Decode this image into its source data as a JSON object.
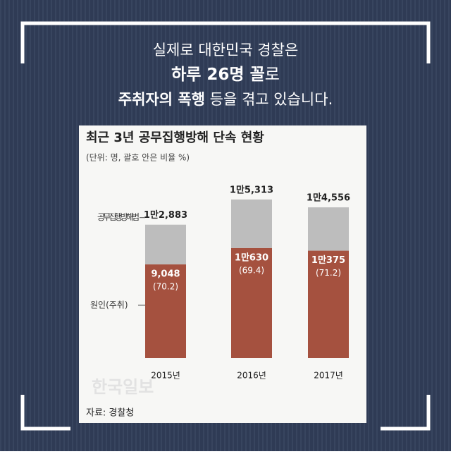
{
  "header": {
    "line1": "실제로 대한민국 경찰은",
    "line2_bold": "하루 26명 꼴",
    "line2_rest": "로",
    "line3_bold": "주취자의 폭행",
    "line3_rest": " 등을 겪고 있습니다."
  },
  "chart_data": {
    "type": "stacked_bar",
    "title": "최근 3년 공무집행방해 단속 현황",
    "subtitle": "(단위: 명, 괄호 안은 비율 %)",
    "categories": [
      "2015년",
      "2016년",
      "2017년"
    ],
    "series": [
      {
        "name": "원인(주취)",
        "color": "#a5513f",
        "values": [
          9048,
          10630,
          10375
        ],
        "value_labels": [
          "9,048",
          "1만630",
          "1만375"
        ],
        "shares": [
          70.2,
          69.4,
          71.2
        ],
        "share_labels": [
          "(70.2)",
          "(69.4)",
          "(71.2)"
        ]
      },
      {
        "color": "#bdbdbd",
        "values": [
          3835,
          4683,
          4181
        ]
      }
    ],
    "total_name": "공무집행방해범",
    "totals": [
      12883,
      15313,
      14556
    ],
    "total_labels": [
      "1만2,883",
      "1만5,313",
      "1만4,556"
    ],
    "watermark": "한국일보",
    "source": "자료: 경찰청"
  }
}
